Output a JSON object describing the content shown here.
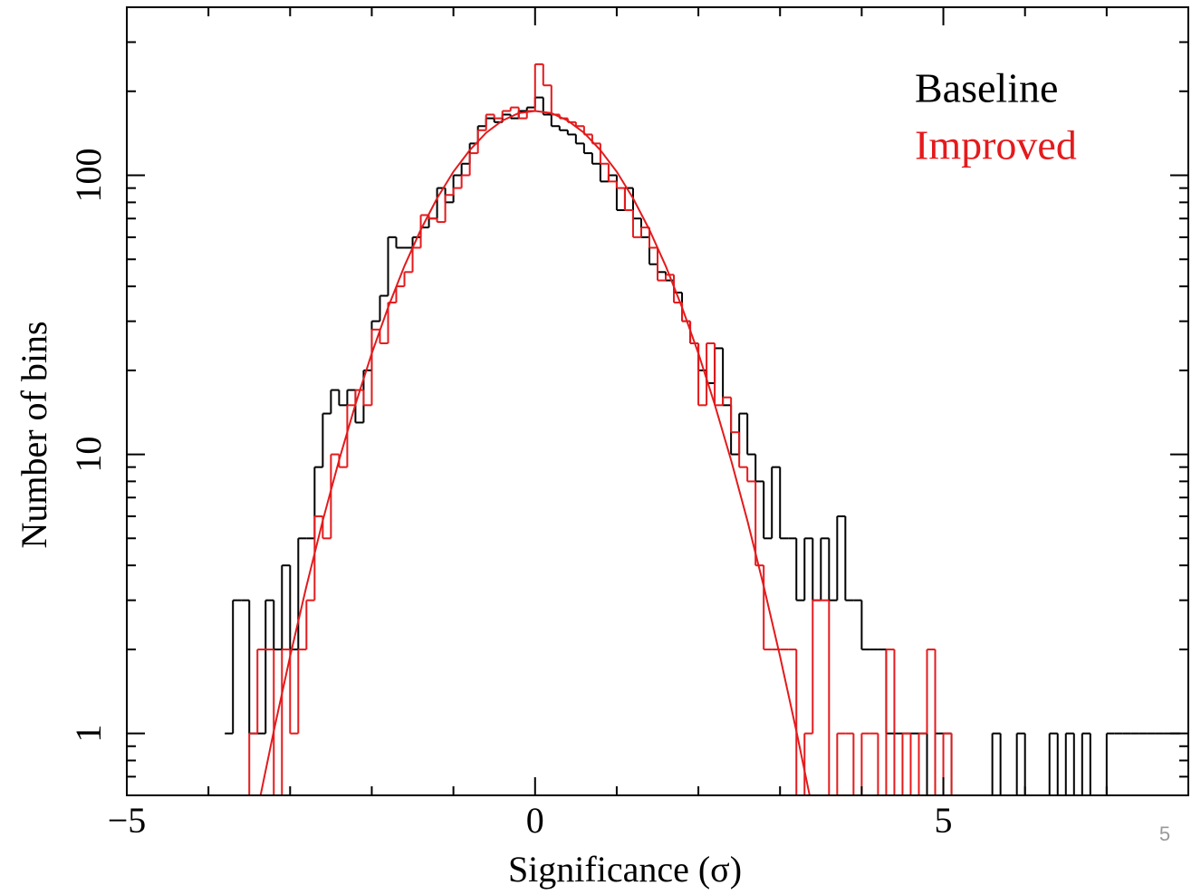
{
  "chart_data": {
    "type": "histogram",
    "xlabel": "Significance (σ)",
    "ylabel": "Number of bins",
    "xlim": [
      -5,
      8
    ],
    "ylim": [
      0.6,
      400
    ],
    "ylog": true,
    "xticks": [
      {
        "value": -5,
        "label": "−5"
      },
      0,
      5
    ],
    "yticks": [
      1,
      10,
      100
    ],
    "xminor_ticks": [
      -4,
      -3,
      -2,
      -1,
      1,
      2,
      3,
      4,
      6,
      7
    ],
    "yminor_ticks": [
      0.7,
      0.8,
      0.9,
      2,
      3,
      4,
      5,
      6,
      7,
      8,
      9,
      20,
      30,
      40,
      50,
      60,
      70,
      80,
      90,
      200,
      300
    ],
    "legend": "top-right",
    "bins": [
      -3.8,
      -3.7,
      -3.6,
      -3.5,
      -3.4,
      -3.3,
      -3.2,
      -3.1,
      -3.0,
      -2.9,
      -2.8,
      -2.7,
      -2.6,
      -2.5,
      -2.4,
      -2.3,
      -2.2,
      -2.1,
      -2.0,
      -1.9,
      -1.8,
      -1.7,
      -1.6,
      -1.5,
      -1.4,
      -1.3,
      -1.2,
      -1.1,
      -1.0,
      -0.9,
      -0.8,
      -0.7,
      -0.6,
      -0.5,
      -0.4,
      -0.3,
      -0.2,
      -0.1,
      0.0,
      0.1,
      0.2,
      0.3,
      0.4,
      0.5,
      0.6,
      0.7,
      0.8,
      0.9,
      1.0,
      1.1,
      1.2,
      1.3,
      1.4,
      1.5,
      1.6,
      1.7,
      1.8,
      1.9,
      2.0,
      2.1,
      2.2,
      2.3,
      2.4,
      2.5,
      2.6,
      2.7,
      2.8,
      2.9,
      3.0,
      3.1,
      3.2,
      3.3,
      3.4,
      3.5,
      3.6,
      3.7,
      3.8,
      3.9,
      4.0,
      4.1,
      4.2,
      4.3,
      4.4,
      4.5,
      4.6,
      4.7,
      4.8,
      4.9,
      5.0,
      5.1,
      5.2,
      5.3,
      5.4,
      5.5,
      5.6,
      5.7,
      5.8,
      5.9,
      6.0,
      6.1,
      6.2,
      6.3,
      6.4,
      6.5,
      6.6,
      6.7,
      6.8,
      6.9,
      7.0,
      7.1,
      7.2,
      7.3,
      7.4,
      7.5,
      7.6,
      7.7,
      7.8,
      7.9
    ],
    "series": [
      {
        "name": "Baseline",
        "color": "#000000",
        "values": [
          1,
          3,
          3,
          1,
          1,
          3,
          2,
          4,
          2,
          5,
          5,
          9,
          14,
          17,
          15,
          17,
          13,
          20,
          30,
          37,
          60,
          55,
          55,
          60,
          65,
          70,
          90,
          80,
          100,
          110,
          130,
          150,
          160,
          155,
          165,
          160,
          170,
          175,
          190,
          165,
          150,
          145,
          140,
          130,
          120,
          110,
          95,
          100,
          75,
          90,
          70,
          60,
          48,
          45,
          42,
          38,
          30,
          25,
          20,
          18,
          24,
          15,
          10,
          14,
          10,
          8,
          5,
          9,
          5,
          5,
          3,
          5,
          3,
          5,
          3,
          6,
          3,
          3,
          2,
          2,
          2,
          1,
          1,
          1,
          1,
          1,
          0,
          1,
          1,
          0,
          0,
          0,
          0,
          0,
          1,
          0,
          0,
          1,
          0,
          0,
          0,
          1,
          0,
          1,
          0,
          1,
          0,
          0,
          1,
          1,
          1,
          1,
          1,
          1,
          1,
          1,
          1
        ]
      },
      {
        "name": "Improved",
        "color": "#e41a1c",
        "values": [
          0,
          0,
          0,
          1,
          2,
          2,
          0,
          2,
          1,
          2,
          3,
          6,
          5,
          10,
          9,
          15,
          17,
          15,
          28,
          25,
          35,
          40,
          45,
          55,
          72,
          70,
          68,
          85,
          90,
          100,
          120,
          145,
          165,
          160,
          170,
          175,
          160,
          170,
          250,
          210,
          165,
          160,
          155,
          150,
          140,
          130,
          110,
          95,
          90,
          75,
          60,
          65,
          55,
          42,
          44,
          35,
          30,
          25,
          15,
          25,
          15,
          16,
          12,
          9,
          8,
          4,
          2,
          2,
          2,
          2,
          0,
          1,
          3,
          3,
          0,
          1,
          1,
          0,
          1,
          1,
          0,
          2,
          0,
          1,
          0,
          1,
          2,
          0,
          1,
          0,
          0,
          0,
          0,
          0,
          0,
          0,
          0,
          0,
          0,
          0,
          0,
          0,
          0,
          0,
          0,
          0,
          0,
          0,
          0,
          0,
          0,
          0,
          0,
          0,
          0,
          0,
          0
        ]
      }
    ],
    "fit": {
      "color": "#e41a1c",
      "x": [
        -3.4,
        -3.2,
        -3.0,
        -2.8,
        -2.6,
        -2.4,
        -2.2,
        -2.0,
        -1.8,
        -1.6,
        -1.4,
        -1.2,
        -1.0,
        -0.8,
        -0.6,
        -0.4,
        -0.2,
        0,
        0.2,
        0.4,
        0.6,
        0.8,
        1.0,
        1.2,
        1.4,
        1.6,
        1.8,
        2.0,
        2.2,
        2.4,
        2.6,
        2.8,
        3.0,
        3.2,
        3.4
      ],
      "values": [
        0.53,
        1.02,
        1.89,
        3.37,
        5.79,
        9.54,
        15.1,
        23.0,
        33.6,
        47.3,
        63.8,
        82.7,
        103,
        123,
        142,
        157,
        167,
        170,
        167,
        157,
        142,
        123,
        103,
        82.7,
        63.8,
        47.3,
        33.6,
        23.0,
        15.1,
        9.54,
        5.79,
        3.37,
        1.89,
        1.02,
        0.53
      ]
    }
  },
  "page_number": "5"
}
